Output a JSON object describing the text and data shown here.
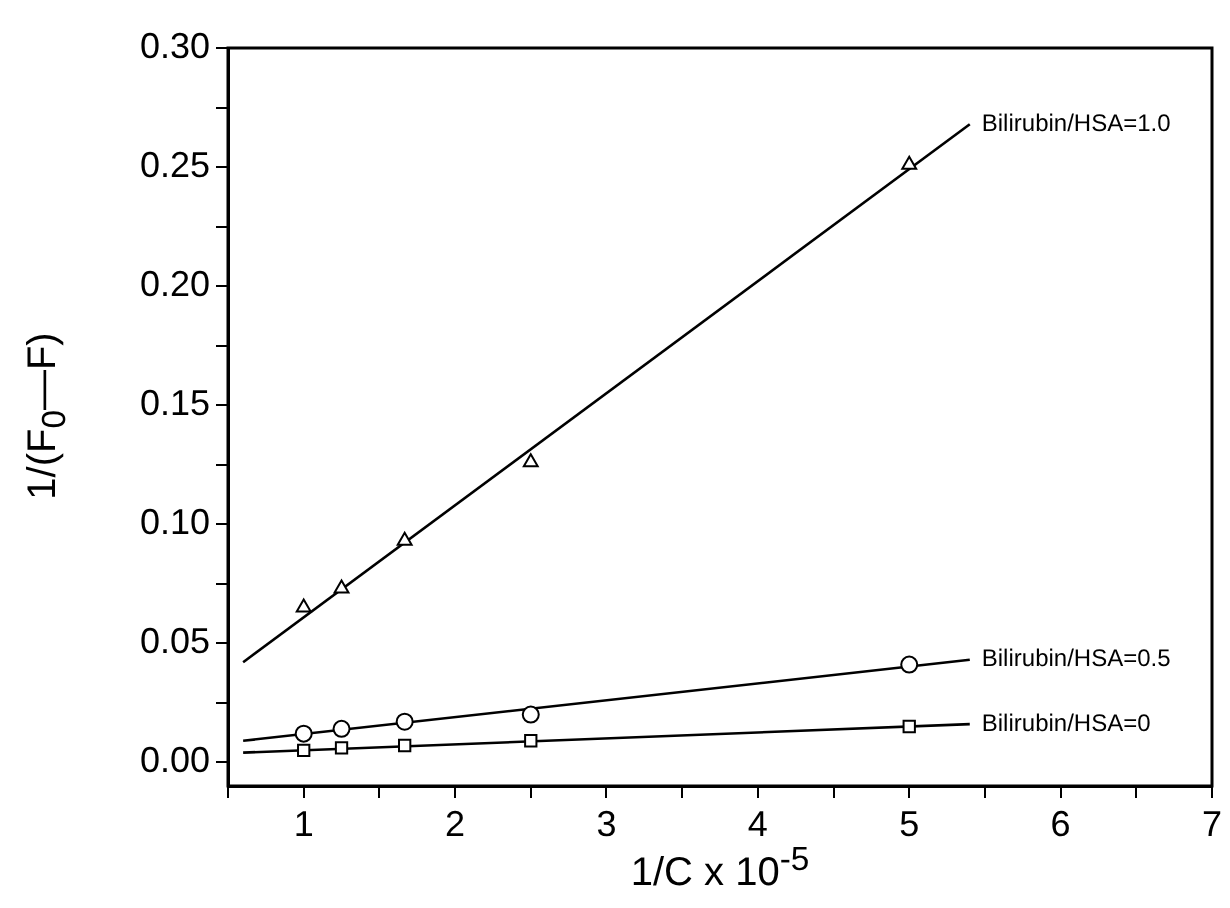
{
  "chart_data": {
    "type": "scatter",
    "xlabel": "1/C x 10$^{-5}$",
    "ylabel": "1/(F$_{0}$—F)",
    "xlim": [
      0.5,
      7
    ],
    "xticks": [
      {
        "value": 0.5,
        "label": null
      },
      1,
      {
        "value": 1.5,
        "label": null
      },
      2,
      {
        "value": 2.5,
        "label": null
      },
      3,
      {
        "value": 3.5,
        "label": null
      },
      4,
      {
        "value": 4.5,
        "label": null
      },
      5,
      {
        "value": 5.5,
        "label": null
      },
      6,
      {
        "value": 6.5,
        "label": null
      },
      7
    ],
    "ylim": [
      -0.01,
      0.3
    ],
    "yticks": [
      "0.00",
      {
        "value": 0.025,
        "label": null
      },
      {
        "value": 0.05,
        "label": "0.05"
      },
      {
        "value": 0.075,
        "label": null
      },
      {
        "value": 0.1,
        "label": "0.10"
      },
      {
        "value": 0.125,
        "label": null
      },
      {
        "value": 0.15,
        "label": "0.15"
      },
      {
        "value": 0.175,
        "label": null
      },
      {
        "value": 0.2,
        "label": "0.20"
      },
      {
        "value": 0.225,
        "label": null
      },
      {
        "value": 0.25,
        "label": "0.25"
      },
      {
        "value": 0.275,
        "label": null
      },
      {
        "value": 0.3,
        "label": "0.30"
      }
    ],
    "grid": false,
    "legend": false,
    "series": [
      {
        "type": "scatter",
        "marker": "triangle",
        "color": "#000000",
        "x": [
          1,
          1.25,
          1.667,
          2.5,
          5
        ],
        "values": [
          0.065,
          0.073,
          0.093,
          0.126,
          0.251
        ]
      },
      {
        "type": "scatter",
        "marker": "circle",
        "color": "#000000",
        "x": [
          1,
          1.25,
          1.667,
          2.5,
          5
        ],
        "values": [
          0.012,
          0.014,
          0.017,
          0.02,
          0.041
        ]
      },
      {
        "type": "scatter",
        "marker": "square",
        "color": "#000000",
        "x": [
          1,
          1.25,
          1.667,
          2.5,
          5
        ],
        "values": [
          0.005,
          0.006,
          0.007,
          0.009,
          0.015
        ]
      },
      {
        "type": "line",
        "name": "Bilirubin/HSA=1.0",
        "color": "#000000",
        "marker": "none",
        "x": [
          0.6,
          5.4
        ],
        "values": [
          0.042,
          0.268
        ]
      },
      {
        "type": "line",
        "name": "Bilirubin/HSA=0.5",
        "color": "#000000",
        "marker": "none",
        "x": [
          0.6,
          5.4
        ],
        "values": [
          0.009,
          0.043
        ]
      },
      {
        "type": "line",
        "name": "Bilirubin/HSA=0",
        "color": "#000000",
        "marker": "none",
        "x": [
          0.6,
          5.4
        ],
        "values": [
          0.004,
          0.016
        ]
      }
    ]
  }
}
